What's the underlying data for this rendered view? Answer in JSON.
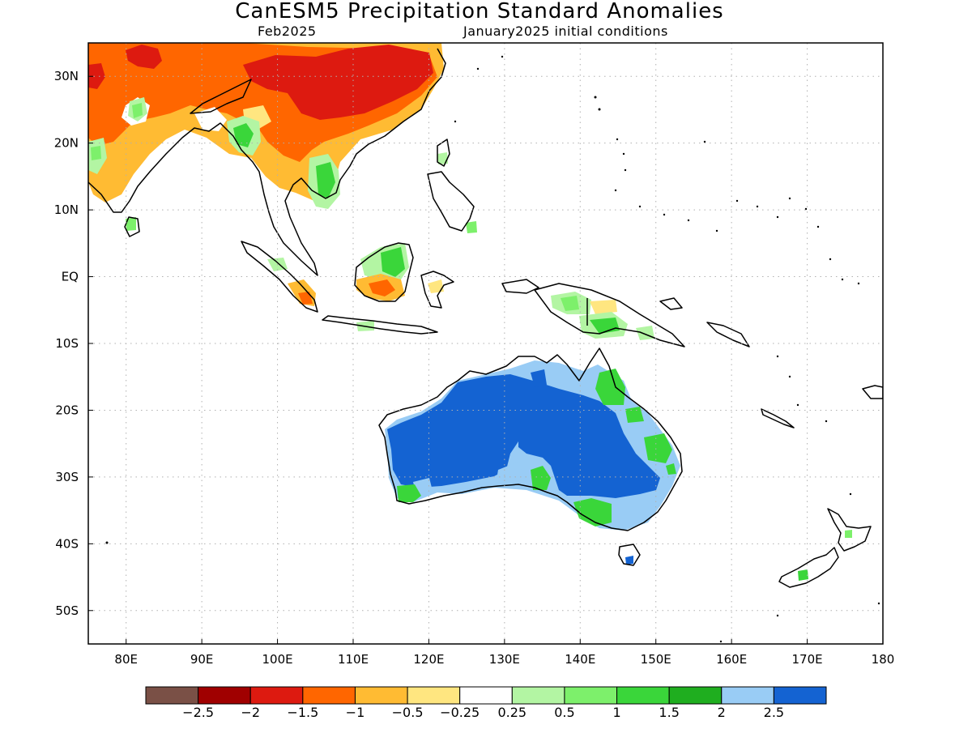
{
  "title": "CanESM5 Precipitation Standard Anomalies",
  "subtitle_left": "Feb2025",
  "subtitle_right": "January2025 initial conditions",
  "map": {
    "lon_range": [
      75,
      180
    ],
    "lat_range": [
      -55,
      35
    ],
    "lon_ticks": [
      {
        "value": 80,
        "label": "80E"
      },
      {
        "value": 90,
        "label": "90E"
      },
      {
        "value": 100,
        "label": "100E"
      },
      {
        "value": 110,
        "label": "110E"
      },
      {
        "value": 120,
        "label": "120E"
      },
      {
        "value": 130,
        "label": "130E"
      },
      {
        "value": 140,
        "label": "140E"
      },
      {
        "value": 150,
        "label": "150E"
      },
      {
        "value": 160,
        "label": "160E"
      },
      {
        "value": 170,
        "label": "170E"
      },
      {
        "value": 180,
        "label": "180"
      }
    ],
    "lat_ticks": [
      {
        "value": 30,
        "label": "30N"
      },
      {
        "value": 20,
        "label": "20N"
      },
      {
        "value": 10,
        "label": "10N"
      },
      {
        "value": 0,
        "label": "EQ"
      },
      {
        "value": -10,
        "label": "10S"
      },
      {
        "value": -20,
        "label": "20S"
      },
      {
        "value": -30,
        "label": "30S"
      },
      {
        "value": -40,
        "label": "40S"
      },
      {
        "value": -50,
        "label": "50S"
      }
    ],
    "grid": "dotted"
  },
  "colorbar": {
    "colors": [
      "#7a5046",
      "#a00000",
      "#dd1a10",
      "#ff6600",
      "#ffbb33",
      "#ffe680",
      "#ffffff",
      "#b3f5a3",
      "#7df06b",
      "#3ad63a",
      "#1fae1f",
      "#99ccf5",
      "#1463d2"
    ],
    "labels": [
      "-2.5",
      "-2",
      "-1.5",
      "-1",
      "-0.5",
      "-0.25",
      "0.25",
      "0.5",
      "1",
      "1.5",
      "2",
      "2.5"
    ]
  },
  "colors": {
    "coast": "#000000",
    "grid": "#b0b0b0"
  }
}
